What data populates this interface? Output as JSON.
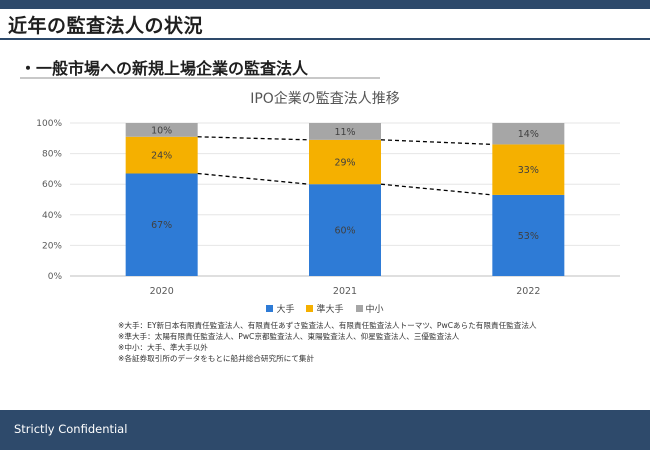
{
  "page": {
    "title": "近年の監査法人の状況",
    "subtitle": "・一般市場への新規上場企業の監査法人",
    "footer": "Strictly Confidential"
  },
  "chart_data": {
    "type": "bar",
    "stacked": true,
    "title": "IPO企業の監査法人推移",
    "categories": [
      "2020",
      "2021",
      "2022"
    ],
    "series": [
      {
        "name": "大手",
        "color": "#2e7bd6",
        "values": [
          67,
          60,
          53
        ]
      },
      {
        "name": "準大手",
        "color": "#f5b000",
        "values": [
          24,
          29,
          33
        ]
      },
      {
        "name": "中小",
        "color": "#a6a6a6",
        "values": [
          10,
          11,
          14
        ]
      }
    ],
    "value_labels": [
      [
        "67%",
        "60%",
        "53%"
      ],
      [
        "24%",
        "29%",
        "33%"
      ],
      [
        "10%",
        "11%",
        "14%"
      ]
    ],
    "y_ticks": [
      "0%",
      "20%",
      "40%",
      "60%",
      "80%",
      "100%"
    ],
    "ylim": [
      0,
      100
    ],
    "legend_position": "bottom",
    "gridlines": true
  },
  "notes": [
    "※大手：EY新日本有限責任監査法人、有限責任あずさ監査法人、有限責任監査法人トーマツ、PwCあらた有限責任監査法人",
    "※準大手：太陽有限責任監査法人、PwC京都監査法人、東陽監査法人、仰星監査法人、三優監査法人",
    "※中小：大手、準大手以外",
    "※各証券取引所のデータをもとに船井総合研究所にて集計"
  ]
}
